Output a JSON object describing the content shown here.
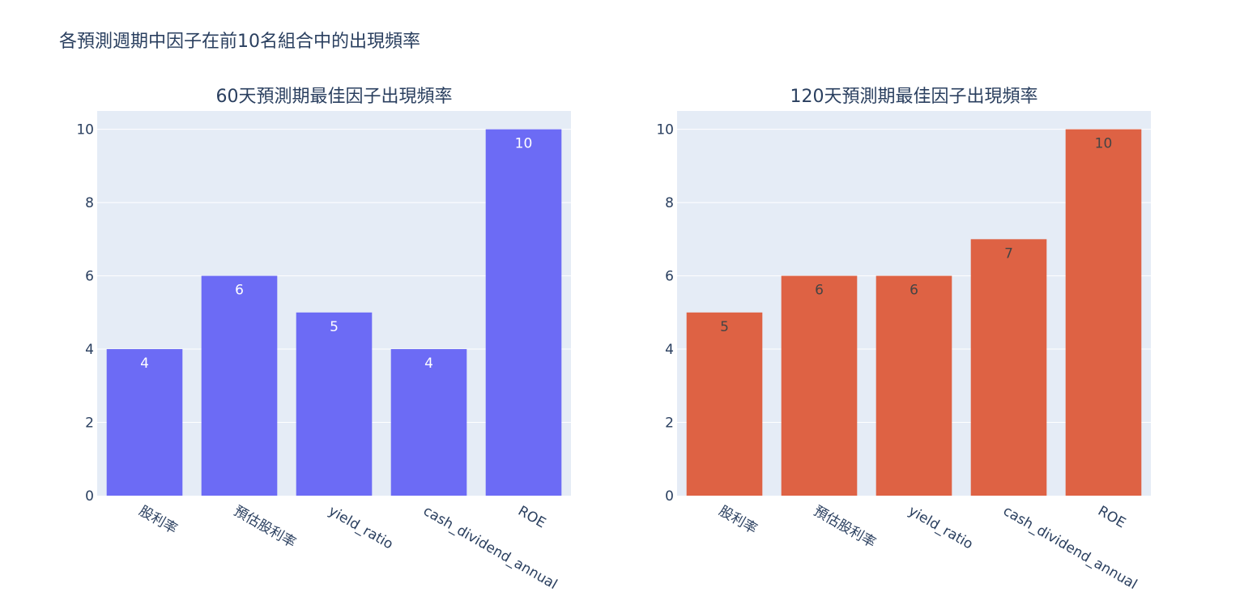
{
  "title": "各預測週期中因子在前10名組合中的出現頻率",
  "colors": {
    "left": "#6c6bf5",
    "right": "#de6244",
    "plot_bg": "#e5ecf6",
    "text": "#2a3f5f"
  },
  "chart_data": [
    {
      "type": "bar",
      "title": "60天預測期最佳因子出現頻率",
      "categories": [
        "股利率",
        "預估股利率",
        "yield_ratio",
        "cash_dividend_annual",
        "ROE"
      ],
      "values": [
        4,
        6,
        5,
        4,
        10
      ],
      "ylim": [
        0,
        10.5
      ],
      "yticks": [
        0,
        2,
        4,
        6,
        8,
        10
      ],
      "grid": true,
      "label_color": "#ffffff"
    },
    {
      "type": "bar",
      "title": "120天預測期最佳因子出現頻率",
      "categories": [
        "股利率",
        "預估股利率",
        "yield_ratio",
        "cash_dividend_annual",
        "ROE"
      ],
      "values": [
        5,
        6,
        6,
        7,
        10
      ],
      "ylim": [
        0,
        10.5
      ],
      "yticks": [
        0,
        2,
        4,
        6,
        8,
        10
      ],
      "grid": true,
      "label_color": "#444444"
    }
  ]
}
